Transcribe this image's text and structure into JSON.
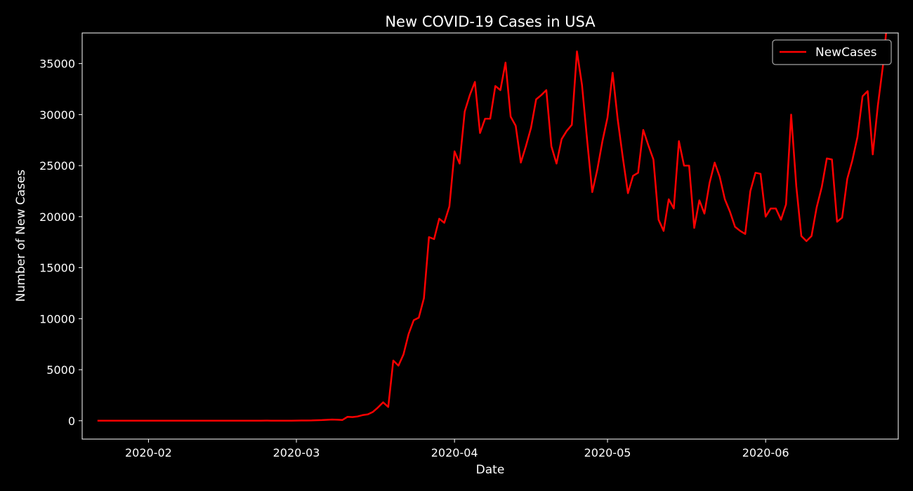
{
  "colors": {
    "background": "#000000",
    "foreground": "#ffffff",
    "series": "#ff0000"
  },
  "chart_data": {
    "type": "line",
    "title": "New COVID-19 Cases in USA",
    "xlabel": "Date",
    "ylabel": "Number of New Cases",
    "legend": {
      "placement": "top-right",
      "entries": [
        "NewCases"
      ]
    },
    "grid": false,
    "xlim": [
      "2020-01-19",
      "2020-06-27"
    ],
    "ylim": [
      -1800,
      38000
    ],
    "x_ticks": [
      "2020-02-01",
      "2020-03-01",
      "2020-04-01",
      "2020-05-01",
      "2020-06-01"
    ],
    "x_tick_labels": [
      "2020-02",
      "2020-03",
      "2020-04",
      "2020-05",
      "2020-06"
    ],
    "y_ticks": [
      0,
      5000,
      10000,
      15000,
      20000,
      25000,
      30000,
      35000
    ],
    "y_tick_labels": [
      "0",
      "5000",
      "10000",
      "15000",
      "20000",
      "25000",
      "30000",
      "35000"
    ],
    "series": [
      {
        "name": "NewCases",
        "color": "#ff0000",
        "x": [
          "2020-01-22",
          "2020-01-23",
          "2020-01-24",
          "2020-01-25",
          "2020-01-26",
          "2020-01-27",
          "2020-01-28",
          "2020-01-29",
          "2020-01-30",
          "2020-01-31",
          "2020-02-01",
          "2020-02-02",
          "2020-02-03",
          "2020-02-04",
          "2020-02-05",
          "2020-02-06",
          "2020-02-07",
          "2020-02-08",
          "2020-02-09",
          "2020-02-10",
          "2020-02-11",
          "2020-02-12",
          "2020-02-13",
          "2020-02-14",
          "2020-02-15",
          "2020-02-16",
          "2020-02-17",
          "2020-02-18",
          "2020-02-19",
          "2020-02-20",
          "2020-02-21",
          "2020-02-22",
          "2020-02-23",
          "2020-02-24",
          "2020-02-25",
          "2020-02-26",
          "2020-02-27",
          "2020-02-28",
          "2020-02-29",
          "2020-03-01",
          "2020-03-02",
          "2020-03-03",
          "2020-03-04",
          "2020-03-05",
          "2020-03-06",
          "2020-03-07",
          "2020-03-08",
          "2020-03-09",
          "2020-03-10",
          "2020-03-11",
          "2020-03-12",
          "2020-03-13",
          "2020-03-14",
          "2020-03-15",
          "2020-03-16",
          "2020-03-17",
          "2020-03-18",
          "2020-03-19",
          "2020-03-20",
          "2020-03-21",
          "2020-03-22",
          "2020-03-23",
          "2020-03-24",
          "2020-03-25",
          "2020-03-26",
          "2020-03-27",
          "2020-03-28",
          "2020-03-29",
          "2020-03-30",
          "2020-03-31",
          "2020-04-01",
          "2020-04-02",
          "2020-04-03",
          "2020-04-04",
          "2020-04-05",
          "2020-04-06",
          "2020-04-07",
          "2020-04-08",
          "2020-04-09",
          "2020-04-10",
          "2020-04-11",
          "2020-04-12",
          "2020-04-13",
          "2020-04-14",
          "2020-04-15",
          "2020-04-16",
          "2020-04-17",
          "2020-04-18",
          "2020-04-19",
          "2020-04-20",
          "2020-04-21",
          "2020-04-22",
          "2020-04-23",
          "2020-04-24",
          "2020-04-25",
          "2020-04-26",
          "2020-04-27",
          "2020-04-28",
          "2020-04-29",
          "2020-04-30",
          "2020-05-01",
          "2020-05-02",
          "2020-05-03",
          "2020-05-04",
          "2020-05-05",
          "2020-05-06",
          "2020-05-07",
          "2020-05-08",
          "2020-05-09",
          "2020-05-10",
          "2020-05-11",
          "2020-05-12",
          "2020-05-13",
          "2020-05-14",
          "2020-05-15",
          "2020-05-16",
          "2020-05-17",
          "2020-05-18",
          "2020-05-19",
          "2020-05-20",
          "2020-05-21",
          "2020-05-22",
          "2020-05-23",
          "2020-05-24",
          "2020-05-25",
          "2020-05-26",
          "2020-05-27",
          "2020-05-28",
          "2020-05-29",
          "2020-05-30",
          "2020-05-31",
          "2020-06-01",
          "2020-06-02",
          "2020-06-03",
          "2020-06-04",
          "2020-06-05",
          "2020-06-06",
          "2020-06-07",
          "2020-06-08",
          "2020-06-09",
          "2020-06-10",
          "2020-06-11",
          "2020-06-12",
          "2020-06-13",
          "2020-06-14",
          "2020-06-15",
          "2020-06-16",
          "2020-06-17",
          "2020-06-18",
          "2020-06-19",
          "2020-06-20",
          "2020-06-21",
          "2020-06-22",
          "2020-06-23",
          "2020-06-24",
          "2020-06-25"
        ],
        "y": [
          0,
          0,
          1,
          0,
          3,
          0,
          0,
          0,
          0,
          2,
          1,
          0,
          3,
          0,
          0,
          0,
          0,
          0,
          0,
          0,
          1,
          0,
          1,
          0,
          0,
          0,
          0,
          0,
          0,
          0,
          2,
          0,
          0,
          18,
          5,
          3,
          7,
          9,
          8,
          15,
          23,
          21,
          27,
          50,
          60,
          90,
          120,
          100,
          70,
          380,
          360,
          420,
          550,
          620,
          870,
          1300,
          1800,
          1350,
          5900,
          5400,
          6500,
          8500,
          9850,
          10100,
          12000,
          18000,
          17800,
          19800,
          19400,
          21000,
          26400,
          25200,
          30300,
          31900,
          33200,
          28200,
          29600,
          29600,
          32800,
          32400,
          35100,
          29800,
          28900,
          25300,
          26900,
          28700,
          31500,
          31900,
          32400,
          26900,
          25200,
          27600,
          28400,
          29000,
          36200,
          32900,
          27500,
          22400,
          24600,
          27400,
          29700,
          34100,
          29500,
          25800,
          22300,
          24000,
          24300,
          28500,
          27000,
          25600,
          19700,
          18600,
          21700,
          20800,
          27400,
          25000,
          25000,
          18900,
          21600,
          20300,
          23300,
          25300,
          23900,
          21700,
          20500,
          19000,
          18600,
          18300,
          22500,
          24300,
          24200,
          20000,
          20800,
          20800,
          19700,
          21200,
          30000,
          23000,
          18100,
          17600,
          18100,
          20900,
          22900,
          25700,
          25600,
          19500,
          19900,
          23700,
          25500,
          27800,
          31800,
          32300,
          26100,
          30900,
          34800,
          40000
        ]
      }
    ]
  }
}
